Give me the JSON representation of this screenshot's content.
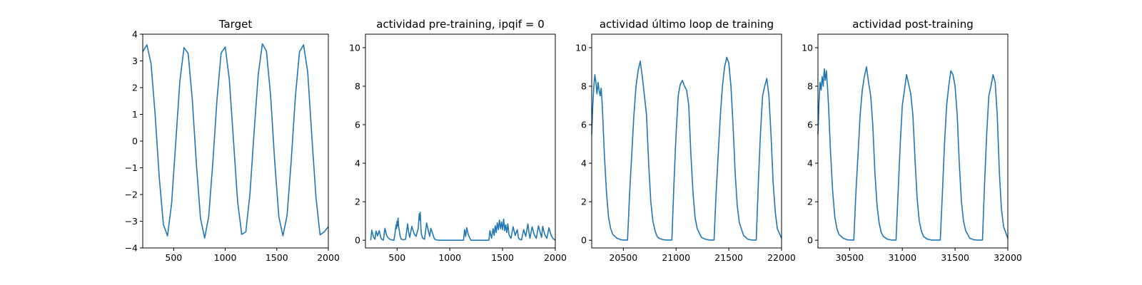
{
  "chart_data": [
    {
      "type": "line",
      "title": "Target",
      "xlim": [
        200,
        2000
      ],
      "ylim": [
        -4,
        4
      ],
      "xticks": [
        500,
        1000,
        1500,
        2000
      ],
      "yticks": [
        -4,
        -3,
        -2,
        -1,
        0,
        1,
        2,
        3,
        4
      ],
      "series": [
        {
          "color": "#1f77b4",
          "x": [
            200,
            240,
            280,
            320,
            360,
            400,
            440,
            480,
            520,
            560,
            600,
            640,
            680,
            720,
            760,
            800,
            840,
            880,
            920,
            960,
            1000,
            1040,
            1080,
            1120,
            1160,
            1200,
            1240,
            1280,
            1320,
            1360,
            1400,
            1440,
            1480,
            1520,
            1560,
            1600,
            1640,
            1680,
            1720,
            1760,
            1800,
            1840,
            1880,
            1920,
            1960,
            2000
          ],
          "y": [
            3.35,
            3.6,
            2.91,
            1.01,
            -1.35,
            -3.12,
            -3.55,
            -2.34,
            -0.06,
            2.24,
            3.5,
            3.28,
            1.6,
            -0.83,
            -2.89,
            -3.63,
            -2.82,
            -0.8,
            1.55,
            3.3,
            3.52,
            2.3,
            0.03,
            -2.26,
            -3.49,
            -3.4,
            -1.98,
            0.34,
            2.49,
            3.64,
            3.36,
            1.72,
            -0.77,
            -2.84,
            -3.55,
            -2.78,
            -0.74,
            1.65,
            3.34,
            3.6,
            2.59,
            0.17,
            -2.11,
            -3.51,
            -3.4,
            -3.2
          ]
        }
      ]
    },
    {
      "type": "line",
      "title": "actividad pre-training, ipqif = 0",
      "xlim": [
        200,
        2000
      ],
      "ylim": [
        -0.4,
        10.7
      ],
      "xticks": [
        500,
        1000,
        1500,
        2000
      ],
      "yticks": [
        0,
        2,
        4,
        6,
        8,
        10
      ],
      "series": [
        {
          "color": "#1f77b4",
          "x": [
            250,
            260,
            275,
            290,
            300,
            315,
            330,
            345,
            355,
            365,
            370,
            385,
            400,
            420,
            440,
            470,
            480,
            490,
            495,
            500,
            505,
            510,
            515,
            520,
            525,
            530,
            540,
            560,
            580,
            600,
            610,
            620,
            640,
            660,
            680,
            700,
            710,
            715,
            720,
            725,
            730,
            740,
            760,
            780,
            800,
            810,
            820,
            840,
            850,
            860,
            880,
            900,
            950,
            1000,
            1100,
            1130,
            1140,
            1150,
            1160,
            1175,
            1190,
            1200,
            1300,
            1370,
            1380,
            1395,
            1410,
            1420,
            1430,
            1440,
            1450,
            1460,
            1470,
            1480,
            1490,
            1500,
            1510,
            1520,
            1530,
            1540,
            1550,
            1560,
            1580,
            1600,
            1620,
            1640,
            1650,
            1660,
            1680,
            1700,
            1720,
            1740,
            1750,
            1760,
            1780,
            1800,
            1820,
            1840,
            1860,
            1870,
            1880,
            1900,
            1920,
            1940,
            1960,
            1980,
            2000
          ],
          "y": [
            0,
            0.52,
            0.18,
            0.05,
            0.48,
            0.22,
            0.5,
            0.15,
            0.05,
            0.02,
            0,
            0.62,
            0.25,
            0.1,
            0.03,
            0,
            0.35,
            0.8,
            0.6,
            1.0,
            0.75,
            1.15,
            0.7,
            0.55,
            0.35,
            0.2,
            0.06,
            0.02,
            0.05,
            0.85,
            0.4,
            0.15,
            0.72,
            0.35,
            0.2,
            0.6,
            1.38,
            1.05,
            1.45,
            0.7,
            0.35,
            0.12,
            0.05,
            0.9,
            0.4,
            0.2,
            0.62,
            0.3,
            0.12,
            0.04,
            0.01,
            0,
            0,
            0,
            0,
            0,
            0.55,
            0.2,
            0.65,
            0.3,
            0.1,
            0,
            0,
            0,
            0.5,
            0.1,
            0.6,
            0.25,
            0.75,
            0.4,
            0.9,
            0.55,
            1.05,
            0.6,
            0.95,
            0.55,
            1.1,
            0.5,
            0.8,
            0.4,
            0.85,
            0.3,
            0.1,
            0.7,
            0.25,
            0.55,
            0.15,
            0.05,
            0.02,
            0.55,
            0.2,
            0.85,
            0.4,
            0.1,
            0.7,
            0.3,
            0.1,
            0.75,
            0.35,
            0.15,
            0.72,
            0.3,
            0.1,
            0.65,
            0.25,
            0.08,
            0
          ]
        }
      ]
    },
    {
      "type": "line",
      "title": "actividad último loop de training",
      "xlim": [
        20200,
        22000
      ],
      "ylim": [
        -0.4,
        10.7
      ],
      "xticks": [
        20500,
        21000,
        21500,
        22000
      ],
      "yticks": [
        0,
        2,
        4,
        6,
        8,
        10
      ],
      "series": [
        {
          "color": "#1f77b4",
          "x": [
            20200,
            20210,
            20220,
            20230,
            20240,
            20250,
            20260,
            20270,
            20280,
            20290,
            20300,
            20320,
            20340,
            20360,
            20380,
            20400,
            20440,
            20480,
            20520,
            20540,
            20560,
            20580,
            20600,
            20620,
            20640,
            20660,
            20680,
            20700,
            20720,
            20740,
            20760,
            20780,
            20800,
            20820,
            20840,
            20880,
            20920,
            20960,
            20980,
            21000,
            21020,
            21040,
            21060,
            21080,
            21100,
            21120,
            21140,
            21160,
            21180,
            21200,
            21240,
            21280,
            21320,
            21360,
            21380,
            21400,
            21420,
            21440,
            21460,
            21480,
            21500,
            21520,
            21540,
            21560,
            21580,
            21600,
            21640,
            21680,
            21720,
            21760,
            21780,
            21800,
            21820,
            21840,
            21860,
            21880,
            21900,
            21920,
            21940,
            21960,
            22000
          ],
          "y": [
            5.5,
            7.0,
            8.0,
            8.6,
            8.2,
            7.6,
            8.2,
            7.8,
            7.5,
            7.9,
            7.0,
            4.5,
            2.5,
            1.2,
            0.6,
            0.3,
            0.1,
            0.02,
            0.01,
            0.01,
            2.5,
            4.5,
            6.5,
            8.0,
            8.8,
            9.3,
            8.5,
            7.5,
            6.5,
            4.0,
            2.0,
            1.0,
            0.5,
            0.2,
            0.1,
            0.02,
            0.01,
            0.01,
            3.0,
            5.5,
            7.5,
            8.1,
            8.3,
            8.0,
            7.8,
            7.0,
            4.5,
            2.5,
            1.2,
            0.6,
            0.15,
            0.05,
            0.01,
            0.01,
            2.5,
            4.5,
            6.5,
            8.0,
            9.0,
            9.5,
            9.2,
            8.0,
            6.0,
            3.5,
            1.8,
            0.9,
            0.25,
            0.05,
            0.01,
            0.01,
            3.0,
            5.5,
            7.5,
            8.0,
            8.4,
            7.5,
            5.5,
            3.0,
            1.5,
            0.6,
            0.1
          ]
        }
      ]
    },
    {
      "type": "line",
      "title": "actividad post-training",
      "xlim": [
        30200,
        32000
      ],
      "ylim": [
        -0.4,
        10.7
      ],
      "xticks": [
        30500,
        31000,
        31500,
        32000
      ],
      "yticks": [
        0,
        2,
        4,
        6,
        8,
        10
      ],
      "series": [
        {
          "color": "#1f77b4",
          "x": [
            30200,
            30210,
            30220,
            30230,
            30240,
            30250,
            30260,
            30270,
            30280,
            30290,
            30300,
            30320,
            30340,
            30360,
            30380,
            30400,
            30440,
            30480,
            30520,
            30540,
            30560,
            30580,
            30600,
            30620,
            30640,
            30660,
            30680,
            30700,
            30720,
            30740,
            30760,
            30780,
            30800,
            30820,
            30860,
            30900,
            30940,
            30960,
            30980,
            31000,
            31020,
            31040,
            31060,
            31080,
            31100,
            31120,
            31140,
            31160,
            31180,
            31200,
            31240,
            31280,
            31320,
            31360,
            31380,
            31400,
            31420,
            31440,
            31460,
            31480,
            31500,
            31520,
            31540,
            31560,
            31580,
            31600,
            31640,
            31680,
            31720,
            31760,
            31780,
            31800,
            31820,
            31840,
            31860,
            31880,
            31900,
            31920,
            31940,
            31960,
            32000
          ],
          "y": [
            5.5,
            7.2,
            8.2,
            7.8,
            8.5,
            8.0,
            8.9,
            8.3,
            8.8,
            8.0,
            7.0,
            4.5,
            2.5,
            1.2,
            0.6,
            0.3,
            0.1,
            0.02,
            0.01,
            0.01,
            2.5,
            4.5,
            6.5,
            7.8,
            8.5,
            9.0,
            8.2,
            7.5,
            6.0,
            3.5,
            1.8,
            0.9,
            0.4,
            0.2,
            0.05,
            0.01,
            0.01,
            2.5,
            5.0,
            7.0,
            7.8,
            8.6,
            8.1,
            7.6,
            6.5,
            4.2,
            2.2,
            1.0,
            0.5,
            0.2,
            0.05,
            0.01,
            0.01,
            0.01,
            2.5,
            5.0,
            7.0,
            8.0,
            8.8,
            8.6,
            8.0,
            6.5,
            4.0,
            2.0,
            1.0,
            0.5,
            0.1,
            0.02,
            0.01,
            0.01,
            3.0,
            5.5,
            7.5,
            8.0,
            8.6,
            8.2,
            6.5,
            3.5,
            1.6,
            0.7,
            0.1
          ]
        }
      ]
    }
  ]
}
